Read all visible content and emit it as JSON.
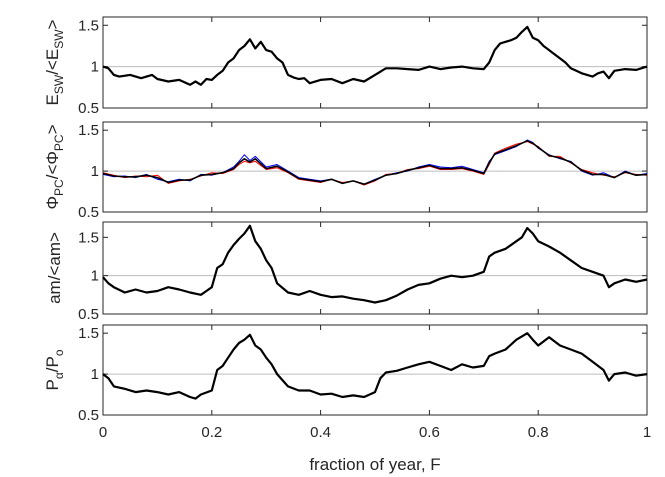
{
  "chart_data": {
    "type": "line",
    "xlabel": "fraction of year, F",
    "xlim": [
      0,
      1
    ],
    "xticks": [
      0,
      0.2,
      0.4,
      0.6,
      0.8,
      1
    ],
    "xtick_labels": [
      "0",
      "0.2",
      "0.4",
      "0.6",
      "0.8",
      "1"
    ],
    "grid": false,
    "legend": "none",
    "panels": [
      {
        "ylabel_main": "E",
        "ylabel_sub": "SW",
        "ylabel_main2": "/<E",
        "ylabel_sub2": "SW",
        "ylabel_end": ">",
        "ylim": [
          0.5,
          1.6
        ],
        "yticks": [
          0.5,
          1,
          1.5
        ],
        "ytick_labels": [
          "0.5",
          "1",
          "1.5"
        ],
        "reference_line": 1,
        "series": [
          {
            "color": "#000000",
            "x": [
              0,
              0.01,
              0.02,
              0.03,
              0.05,
              0.07,
              0.09,
              0.1,
              0.12,
              0.14,
              0.16,
              0.17,
              0.18,
              0.19,
              0.2,
              0.21,
              0.22,
              0.23,
              0.24,
              0.25,
              0.26,
              0.27,
              0.28,
              0.29,
              0.3,
              0.31,
              0.32,
              0.33,
              0.34,
              0.35,
              0.36,
              0.37,
              0.38,
              0.4,
              0.42,
              0.44,
              0.46,
              0.48,
              0.5,
              0.52,
              0.54,
              0.56,
              0.58,
              0.6,
              0.62,
              0.64,
              0.66,
              0.68,
              0.7,
              0.71,
              0.72,
              0.73,
              0.74,
              0.75,
              0.76,
              0.77,
              0.78,
              0.79,
              0.8,
              0.81,
              0.82,
              0.83,
              0.84,
              0.85,
              0.86,
              0.87,
              0.88,
              0.89,
              0.9,
              0.91,
              0.92,
              0.93,
              0.94,
              0.96,
              0.98,
              1.0
            ],
            "y": [
              1.0,
              0.98,
              0.9,
              0.88,
              0.9,
              0.86,
              0.9,
              0.85,
              0.82,
              0.84,
              0.78,
              0.82,
              0.78,
              0.85,
              0.84,
              0.9,
              0.95,
              1.05,
              1.1,
              1.2,
              1.25,
              1.33,
              1.22,
              1.3,
              1.2,
              1.18,
              1.1,
              1.05,
              0.9,
              0.87,
              0.85,
              0.86,
              0.8,
              0.84,
              0.85,
              0.8,
              0.85,
              0.82,
              0.9,
              0.98,
              0.98,
              0.97,
              0.96,
              1.0,
              0.97,
              0.99,
              1.0,
              0.98,
              0.97,
              1.05,
              1.2,
              1.28,
              1.3,
              1.32,
              1.35,
              1.42,
              1.48,
              1.35,
              1.32,
              1.25,
              1.2,
              1.15,
              1.1,
              1.05,
              0.98,
              0.95,
              0.92,
              0.9,
              0.88,
              0.92,
              0.94,
              0.86,
              0.95,
              0.97,
              0.96,
              1.0
            ]
          }
        ]
      },
      {
        "ylabel_main": "Φ",
        "ylabel_sub": "PC",
        "ylabel_main2": "/<Φ",
        "ylabel_sub2": "PC",
        "ylabel_end": ">",
        "ylim": [
          0.5,
          1.6
        ],
        "yticks": [
          0.5,
          1,
          1.5
        ],
        "ytick_labels": [
          "0.5",
          "1",
          "1.5"
        ],
        "reference_line": 1,
        "series": [
          {
            "color": "#0000ff",
            "x": [
              0,
              0.02,
              0.04,
              0.06,
              0.08,
              0.1,
              0.12,
              0.14,
              0.16,
              0.18,
              0.2,
              0.22,
              0.24,
              0.25,
              0.26,
              0.27,
              0.28,
              0.3,
              0.32,
              0.34,
              0.36,
              0.38,
              0.4,
              0.42,
              0.44,
              0.46,
              0.48,
              0.5,
              0.52,
              0.54,
              0.56,
              0.58,
              0.6,
              0.62,
              0.64,
              0.66,
              0.68,
              0.7,
              0.71,
              0.72,
              0.74,
              0.76,
              0.78,
              0.79,
              0.8,
              0.82,
              0.84,
              0.86,
              0.88,
              0.9,
              0.92,
              0.94,
              0.96,
              0.98,
              1.0
            ],
            "y": [
              0.96,
              0.93,
              0.94,
              0.92,
              0.96,
              0.9,
              0.87,
              0.9,
              0.88,
              0.96,
              0.95,
              0.98,
              1.05,
              1.12,
              1.2,
              1.13,
              1.18,
              1.05,
              1.08,
              1.0,
              0.92,
              0.9,
              0.88,
              0.9,
              0.85,
              0.88,
              0.84,
              0.9,
              0.95,
              0.98,
              1.0,
              1.05,
              1.08,
              1.05,
              1.04,
              1.06,
              1.02,
              0.98,
              1.12,
              1.2,
              1.25,
              1.3,
              1.38,
              1.35,
              1.28,
              1.2,
              1.15,
              1.12,
              1.0,
              0.95,
              0.98,
              0.92,
              1.0,
              0.95,
              0.97
            ]
          },
          {
            "color": "#ff0000",
            "x": [
              0,
              0.02,
              0.04,
              0.06,
              0.08,
              0.1,
              0.12,
              0.14,
              0.16,
              0.18,
              0.2,
              0.22,
              0.24,
              0.25,
              0.26,
              0.27,
              0.28,
              0.3,
              0.32,
              0.34,
              0.36,
              0.38,
              0.4,
              0.42,
              0.44,
              0.46,
              0.48,
              0.5,
              0.52,
              0.54,
              0.56,
              0.58,
              0.6,
              0.62,
              0.64,
              0.66,
              0.68,
              0.7,
              0.71,
              0.72,
              0.74,
              0.76,
              0.78,
              0.79,
              0.8,
              0.82,
              0.84,
              0.86,
              0.88,
              0.9,
              0.92,
              0.94,
              0.96,
              0.98,
              1.0
            ],
            "y": [
              0.98,
              0.95,
              0.92,
              0.94,
              0.93,
              0.95,
              0.85,
              0.88,
              0.9,
              0.94,
              0.98,
              0.97,
              1.02,
              1.08,
              1.12,
              1.1,
              1.12,
              1.02,
              1.04,
              0.98,
              0.9,
              0.88,
              0.86,
              0.9,
              0.86,
              0.88,
              0.83,
              0.88,
              0.96,
              0.97,
              1.02,
              1.03,
              1.06,
              1.02,
              1.02,
              1.03,
              1.0,
              0.96,
              1.08,
              1.22,
              1.28,
              1.33,
              1.36,
              1.33,
              1.3,
              1.18,
              1.18,
              1.1,
              1.02,
              0.98,
              0.95,
              0.93,
              0.98,
              0.96,
              0.95
            ]
          },
          {
            "color": "#000000",
            "x": [
              0,
              0.02,
              0.04,
              0.06,
              0.08,
              0.1,
              0.12,
              0.14,
              0.16,
              0.18,
              0.2,
              0.22,
              0.24,
              0.25,
              0.26,
              0.27,
              0.28,
              0.3,
              0.32,
              0.34,
              0.36,
              0.38,
              0.4,
              0.42,
              0.44,
              0.46,
              0.48,
              0.5,
              0.52,
              0.54,
              0.56,
              0.58,
              0.6,
              0.62,
              0.64,
              0.66,
              0.68,
              0.7,
              0.71,
              0.72,
              0.74,
              0.76,
              0.78,
              0.79,
              0.8,
              0.82,
              0.84,
              0.86,
              0.88,
              0.9,
              0.92,
              0.94,
              0.96,
              0.98,
              1.0
            ],
            "y": [
              0.97,
              0.94,
              0.93,
              0.93,
              0.95,
              0.92,
              0.86,
              0.89,
              0.89,
              0.95,
              0.96,
              0.98,
              1.03,
              1.1,
              1.15,
              1.11,
              1.15,
              1.03,
              1.06,
              0.99,
              0.91,
              0.89,
              0.87,
              0.9,
              0.85,
              0.88,
              0.84,
              0.89,
              0.95,
              0.97,
              1.01,
              1.04,
              1.07,
              1.03,
              1.03,
              1.04,
              1.01,
              0.97,
              1.1,
              1.21,
              1.26,
              1.31,
              1.37,
              1.34,
              1.29,
              1.19,
              1.16,
              1.11,
              1.01,
              0.96,
              0.96,
              0.92,
              0.99,
              0.95,
              0.96
            ]
          }
        ]
      },
      {
        "ylabel_main": "am/<am>",
        "ylim": [
          0.5,
          1.7
        ],
        "yticks": [
          0.5,
          1,
          1.5
        ],
        "ytick_labels": [
          "0.5",
          "1",
          "1.5"
        ],
        "reference_line": 1,
        "series": [
          {
            "color": "#000000",
            "x": [
              0,
              0.01,
              0.02,
              0.04,
              0.06,
              0.08,
              0.1,
              0.12,
              0.14,
              0.16,
              0.18,
              0.19,
              0.2,
              0.21,
              0.22,
              0.23,
              0.24,
              0.25,
              0.26,
              0.27,
              0.28,
              0.29,
              0.3,
              0.31,
              0.32,
              0.34,
              0.36,
              0.38,
              0.4,
              0.42,
              0.44,
              0.46,
              0.48,
              0.5,
              0.52,
              0.54,
              0.56,
              0.58,
              0.6,
              0.62,
              0.64,
              0.66,
              0.68,
              0.7,
              0.71,
              0.72,
              0.74,
              0.76,
              0.77,
              0.78,
              0.79,
              0.8,
              0.82,
              0.84,
              0.86,
              0.88,
              0.9,
              0.92,
              0.93,
              0.94,
              0.96,
              0.98,
              1.0
            ],
            "y": [
              0.98,
              0.9,
              0.85,
              0.78,
              0.82,
              0.78,
              0.8,
              0.85,
              0.82,
              0.78,
              0.75,
              0.8,
              0.85,
              1.1,
              1.15,
              1.3,
              1.4,
              1.48,
              1.55,
              1.65,
              1.45,
              1.35,
              1.2,
              1.1,
              0.9,
              0.78,
              0.75,
              0.8,
              0.75,
              0.72,
              0.73,
              0.7,
              0.68,
              0.65,
              0.68,
              0.74,
              0.82,
              0.88,
              0.9,
              0.96,
              1.0,
              0.98,
              1.0,
              1.05,
              1.25,
              1.3,
              1.35,
              1.45,
              1.5,
              1.62,
              1.55,
              1.45,
              1.38,
              1.3,
              1.2,
              1.1,
              1.05,
              1.0,
              0.85,
              0.9,
              0.95,
              0.92,
              0.95
            ]
          }
        ]
      },
      {
        "ylabel_main": "P",
        "ylabel_sub": "α",
        "ylabel_main2": "/P",
        "ylabel_sub2": "o",
        "ylabel_end": "",
        "ylim": [
          0.5,
          1.6
        ],
        "yticks": [
          0.5,
          1,
          1.5
        ],
        "ytick_labels": [
          "0.5",
          "1",
          "1.5"
        ],
        "reference_line": 1,
        "series": [
          {
            "color": "#000000",
            "x": [
              0,
              0.01,
              0.02,
              0.04,
              0.06,
              0.08,
              0.1,
              0.12,
              0.14,
              0.16,
              0.17,
              0.18,
              0.2,
              0.21,
              0.22,
              0.23,
              0.24,
              0.25,
              0.26,
              0.27,
              0.28,
              0.29,
              0.3,
              0.31,
              0.32,
              0.34,
              0.36,
              0.38,
              0.4,
              0.42,
              0.44,
              0.46,
              0.48,
              0.5,
              0.51,
              0.52,
              0.54,
              0.56,
              0.58,
              0.6,
              0.62,
              0.64,
              0.66,
              0.68,
              0.7,
              0.71,
              0.72,
              0.74,
              0.76,
              0.78,
              0.79,
              0.8,
              0.82,
              0.84,
              0.86,
              0.88,
              0.9,
              0.92,
              0.93,
              0.94,
              0.96,
              0.98,
              1.0
            ],
            "y": [
              1.0,
              0.95,
              0.85,
              0.82,
              0.78,
              0.8,
              0.78,
              0.75,
              0.78,
              0.72,
              0.7,
              0.75,
              0.8,
              1.05,
              1.1,
              1.2,
              1.3,
              1.38,
              1.42,
              1.48,
              1.35,
              1.3,
              1.2,
              1.12,
              1.0,
              0.85,
              0.8,
              0.8,
              0.75,
              0.76,
              0.72,
              0.74,
              0.72,
              0.78,
              0.95,
              1.02,
              1.04,
              1.08,
              1.12,
              1.15,
              1.1,
              1.05,
              1.12,
              1.08,
              1.1,
              1.22,
              1.25,
              1.3,
              1.42,
              1.5,
              1.42,
              1.35,
              1.45,
              1.35,
              1.3,
              1.25,
              1.15,
              1.05,
              0.92,
              1.0,
              1.02,
              0.98,
              1.0
            ]
          }
        ]
      }
    ]
  }
}
